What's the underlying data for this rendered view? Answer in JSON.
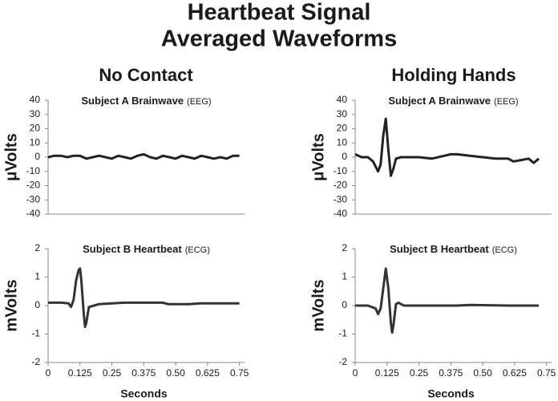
{
  "title": [
    "Heartbeat Signal",
    "Averaged Waveforms"
  ],
  "columns": [
    "No Contact",
    "Holding Hands"
  ],
  "chart_data": [
    {
      "type": "line",
      "title": "Subject A Brainwave",
      "title_note": "(EEG)",
      "ylabel": "μVolts",
      "color": "#222222",
      "x": [
        0,
        0.025,
        0.05,
        0.075,
        0.1,
        0.125,
        0.15,
        0.175,
        0.2,
        0.225,
        0.25,
        0.275,
        0.3,
        0.325,
        0.35,
        0.375,
        0.4,
        0.425,
        0.45,
        0.475,
        0.5,
        0.525,
        0.55,
        0.575,
        0.6,
        0.625,
        0.65,
        0.675,
        0.7,
        0.725,
        0.75
      ],
      "values": [
        0,
        1,
        1,
        0,
        1,
        1,
        -1,
        0,
        1,
        0,
        -1,
        1,
        0,
        -1,
        1,
        2,
        0,
        -1,
        1,
        0,
        -1,
        1,
        0,
        -1,
        1,
        0,
        -1,
        0,
        -1,
        1,
        1
      ],
      "xlim": [
        0,
        0.77
      ],
      "ylim": [
        -40,
        40
      ],
      "yticks": [
        -40,
        -30,
        -20,
        -10,
        0,
        10,
        20,
        30,
        40
      ]
    },
    {
      "type": "line",
      "title": "Subject A Brainwave",
      "title_note": "(EEG)",
      "ylabel": "μVolts",
      "color": "#222222",
      "x": [
        0,
        0.025,
        0.05,
        0.07,
        0.09,
        0.1,
        0.11,
        0.12,
        0.13,
        0.14,
        0.15,
        0.16,
        0.18,
        0.2,
        0.25,
        0.3,
        0.35,
        0.375,
        0.4,
        0.45,
        0.5,
        0.55,
        0.6,
        0.62,
        0.65,
        0.68,
        0.7,
        0.72
      ],
      "values": [
        2,
        0,
        0,
        -3,
        -10,
        -5,
        15,
        27,
        5,
        -13,
        -8,
        -1,
        0,
        0,
        0,
        -1,
        1,
        2,
        2,
        1,
        0,
        -1,
        -1,
        -3,
        -2,
        -1,
        -4,
        -1
      ],
      "xlim": [
        0,
        0.77
      ],
      "ylim": [
        -40,
        40
      ],
      "yticks": [
        -40,
        -30,
        -20,
        -10,
        0,
        10,
        20,
        30,
        40
      ]
    },
    {
      "type": "line",
      "title": "Subject B Heartbeat",
      "title_note": "(ECG)",
      "ylabel": "mVolts",
      "xlabel": "Seconds",
      "color": "#333333",
      "x": [
        0,
        0.05,
        0.08,
        0.09,
        0.1,
        0.11,
        0.12,
        0.125,
        0.13,
        0.14,
        0.145,
        0.15,
        0.16,
        0.18,
        0.2,
        0.3,
        0.45,
        0.47,
        0.55,
        0.6,
        0.75
      ],
      "values": [
        0.1,
        0.1,
        0.08,
        -0.05,
        0.2,
        0.9,
        1.25,
        1.3,
        0.9,
        -0.3,
        -0.75,
        -0.6,
        -0.05,
        0,
        0.05,
        0.1,
        0.1,
        0.05,
        0.05,
        0.08,
        0.08
      ],
      "xlim": [
        0,
        0.77
      ],
      "ylim": [
        -2,
        2
      ],
      "yticks": [
        -2,
        -1,
        0,
        1,
        2
      ],
      "xticks": [
        0,
        0.125,
        0.25,
        0.375,
        {
          "value": 0.5,
          "label": "0.50"
        },
        0.625,
        0.75
      ]
    },
    {
      "type": "line",
      "title": "Subject B Heartbeat",
      "title_note": "(ECG)",
      "ylabel": "mVolts",
      "xlabel": "Seconds",
      "color": "#333333",
      "x": [
        0,
        0.05,
        0.08,
        0.09,
        0.1,
        0.11,
        0.12,
        0.13,
        0.14,
        0.145,
        0.15,
        0.16,
        0.17,
        0.19,
        0.25,
        0.4,
        0.45,
        0.6,
        0.72
      ],
      "values": [
        0,
        0,
        -0.1,
        -0.3,
        -0.1,
        0.6,
        1.3,
        0.6,
        -0.6,
        -0.95,
        -0.7,
        0.05,
        0.1,
        0,
        0,
        0,
        0.02,
        0,
        0
      ],
      "xlim": [
        0,
        0.77
      ],
      "ylim": [
        -2,
        2
      ],
      "yticks": [
        -2,
        -1,
        0,
        1,
        2
      ],
      "xticks": [
        0,
        0.125,
        0.25,
        0.375,
        {
          "value": 0.5,
          "label": "0.50"
        },
        0.625,
        0.75
      ]
    }
  ]
}
